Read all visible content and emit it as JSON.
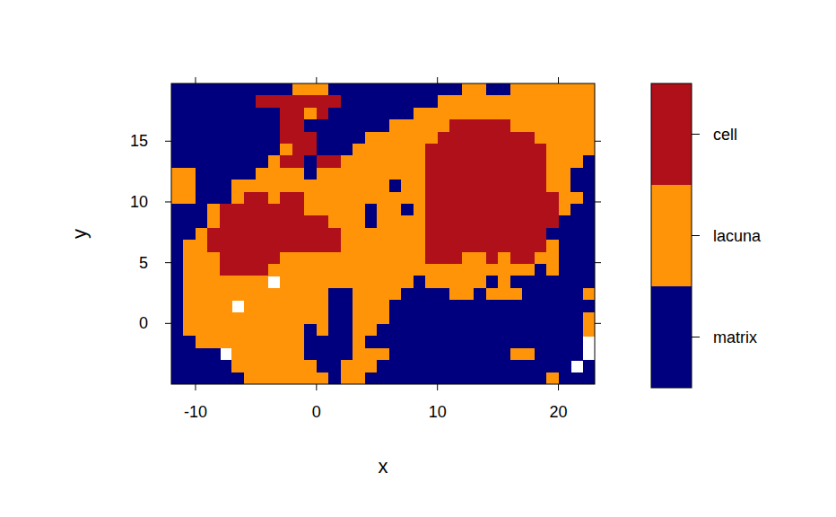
{
  "chart_data": {
    "type": "heatmap",
    "x_label": "x",
    "y_label": "y",
    "xlim": [
      -12,
      23
    ],
    "ylim": [
      -5,
      19.75
    ],
    "xticks": [
      -10,
      0,
      10,
      20
    ],
    "yticks": [
      0,
      5,
      10,
      15
    ],
    "levels": [
      "matrix",
      "lacuna",
      "cell"
    ],
    "colors": [
      "#00007f",
      "#ff9408",
      "#b0101a"
    ],
    "cells": [
      [
        0,
        0,
        0,
        0,
        0,
        0,
        0,
        0,
        0,
        0,
        1,
        1,
        1,
        0,
        0,
        0,
        0,
        0,
        0,
        0,
        0,
        0,
        0,
        0,
        1,
        1,
        0,
        0,
        1,
        1,
        1,
        1,
        1,
        1,
        1
      ],
      [
        0,
        0,
        0,
        0,
        0,
        0,
        0,
        2,
        2,
        2,
        2,
        2,
        2,
        2,
        0,
        0,
        0,
        0,
        0,
        0,
        0,
        0,
        1,
        1,
        1,
        1,
        1,
        1,
        1,
        1,
        1,
        1,
        1,
        1,
        1
      ],
      [
        0,
        0,
        0,
        0,
        0,
        0,
        0,
        0,
        0,
        2,
        2,
        1,
        2,
        0,
        0,
        0,
        0,
        0,
        0,
        0,
        1,
        1,
        1,
        1,
        1,
        1,
        1,
        1,
        1,
        1,
        1,
        1,
        1,
        1,
        1
      ],
      [
        0,
        0,
        0,
        0,
        0,
        0,
        0,
        0,
        0,
        2,
        2,
        0,
        0,
        0,
        0,
        0,
        0,
        0,
        1,
        1,
        1,
        1,
        1,
        2,
        2,
        2,
        2,
        2,
        1,
        1,
        1,
        1,
        1,
        1,
        1
      ],
      [
        0,
        0,
        0,
        0,
        0,
        0,
        0,
        0,
        0,
        2,
        2,
        2,
        0,
        0,
        0,
        0,
        1,
        1,
        1,
        1,
        1,
        1,
        2,
        2,
        2,
        2,
        2,
        2,
        2,
        2,
        1,
        1,
        1,
        1,
        1
      ],
      [
        0,
        0,
        0,
        0,
        0,
        0,
        0,
        0,
        0,
        1,
        2,
        2,
        0,
        0,
        0,
        1,
        1,
        1,
        1,
        1,
        1,
        2,
        2,
        2,
        2,
        2,
        2,
        2,
        2,
        2,
        2,
        1,
        1,
        1,
        1
      ],
      [
        0,
        0,
        0,
        0,
        0,
        0,
        0,
        0,
        1,
        2,
        2,
        0,
        2,
        2,
        1,
        1,
        1,
        1,
        1,
        1,
        1,
        2,
        2,
        2,
        2,
        2,
        2,
        2,
        2,
        2,
        2,
        1,
        1,
        1,
        0
      ],
      [
        1,
        1,
        0,
        0,
        0,
        0,
        0,
        1,
        1,
        1,
        1,
        0,
        1,
        1,
        1,
        1,
        1,
        1,
        1,
        1,
        1,
        2,
        2,
        2,
        2,
        2,
        2,
        2,
        2,
        2,
        2,
        1,
        1,
        0,
        0
      ],
      [
        1,
        1,
        0,
        0,
        0,
        1,
        1,
        1,
        1,
        1,
        1,
        1,
        1,
        1,
        1,
        1,
        1,
        1,
        0,
        1,
        1,
        2,
        2,
        2,
        2,
        2,
        2,
        2,
        2,
        2,
        2,
        1,
        1,
        0,
        0
      ],
      [
        1,
        1,
        0,
        0,
        0,
        1,
        2,
        2,
        1,
        2,
        2,
        1,
        1,
        1,
        1,
        1,
        1,
        1,
        1,
        1,
        1,
        2,
        2,
        2,
        2,
        2,
        2,
        2,
        2,
        2,
        2,
        2,
        1,
        1,
        0
      ],
      [
        0,
        0,
        0,
        1,
        2,
        2,
        2,
        2,
        2,
        2,
        2,
        1,
        1,
        1,
        1,
        1,
        0,
        1,
        1,
        0,
        1,
        2,
        2,
        2,
        2,
        2,
        2,
        2,
        2,
        2,
        2,
        2,
        1,
        0,
        0
      ],
      [
        0,
        0,
        0,
        1,
        2,
        2,
        2,
        2,
        2,
        2,
        2,
        2,
        2,
        1,
        1,
        1,
        0,
        1,
        1,
        1,
        1,
        2,
        2,
        2,
        2,
        2,
        2,
        2,
        2,
        2,
        2,
        2,
        0,
        0,
        0
      ],
      [
        0,
        0,
        1,
        2,
        2,
        2,
        2,
        2,
        2,
        2,
        2,
        2,
        2,
        2,
        1,
        1,
        1,
        1,
        1,
        1,
        1,
        2,
        2,
        2,
        2,
        2,
        2,
        2,
        2,
        2,
        2,
        0,
        0,
        0,
        0
      ],
      [
        0,
        1,
        1,
        2,
        2,
        2,
        2,
        2,
        2,
        2,
        2,
        2,
        2,
        2,
        1,
        1,
        1,
        1,
        1,
        1,
        1,
        2,
        2,
        2,
        2,
        2,
        2,
        2,
        2,
        2,
        2,
        1,
        0,
        0,
        0
      ],
      [
        0,
        1,
        1,
        1,
        2,
        2,
        2,
        2,
        2,
        1,
        1,
        1,
        1,
        1,
        1,
        1,
        1,
        1,
        1,
        1,
        1,
        2,
        2,
        2,
        1,
        1,
        2,
        1,
        2,
        2,
        1,
        1,
        0,
        0,
        0
      ],
      [
        0,
        1,
        1,
        1,
        2,
        2,
        2,
        2,
        1,
        1,
        1,
        1,
        1,
        1,
        1,
        1,
        1,
        1,
        1,
        1,
        1,
        1,
        1,
        1,
        1,
        1,
        1,
        1,
        1,
        1,
        0,
        1,
        0,
        0,
        0
      ],
      [
        0,
        1,
        1,
        1,
        1,
        1,
        1,
        1,
        null,
        1,
        1,
        1,
        1,
        1,
        1,
        1,
        1,
        1,
        1,
        1,
        0,
        1,
        1,
        1,
        1,
        1,
        0,
        1,
        0,
        0,
        0,
        0,
        0,
        0,
        0
      ],
      [
        0,
        1,
        1,
        1,
        1,
        1,
        1,
        1,
        1,
        1,
        1,
        1,
        1,
        0,
        0,
        1,
        1,
        1,
        1,
        0,
        0,
        0,
        0,
        1,
        1,
        0,
        1,
        1,
        1,
        0,
        0,
        0,
        0,
        0,
        1
      ],
      [
        0,
        1,
        1,
        1,
        1,
        null,
        1,
        1,
        1,
        1,
        1,
        1,
        1,
        0,
        0,
        1,
        1,
        1,
        0,
        0,
        0,
        0,
        0,
        0,
        0,
        0,
        0,
        0,
        0,
        0,
        0,
        0,
        0,
        0,
        0
      ],
      [
        0,
        1,
        1,
        1,
        1,
        1,
        1,
        1,
        1,
        1,
        1,
        1,
        1,
        0,
        0,
        1,
        1,
        1,
        0,
        0,
        0,
        0,
        0,
        0,
        0,
        0,
        0,
        0,
        0,
        0,
        0,
        0,
        0,
        0,
        1
      ],
      [
        0,
        1,
        1,
        1,
        1,
        1,
        1,
        1,
        1,
        1,
        1,
        0,
        1,
        0,
        0,
        1,
        1,
        0,
        0,
        0,
        0,
        0,
        0,
        0,
        0,
        0,
        0,
        0,
        0,
        0,
        0,
        0,
        0,
        0,
        1
      ],
      [
        0,
        0,
        1,
        1,
        1,
        1,
        1,
        1,
        1,
        1,
        1,
        0,
        0,
        0,
        0,
        1,
        0,
        0,
        0,
        0,
        0,
        0,
        0,
        0,
        0,
        0,
        0,
        0,
        0,
        0,
        0,
        0,
        0,
        0,
        null
      ],
      [
        0,
        0,
        0,
        0,
        null,
        1,
        1,
        1,
        1,
        1,
        1,
        0,
        0,
        0,
        0,
        1,
        1,
        1,
        0,
        0,
        0,
        0,
        0,
        0,
        0,
        0,
        0,
        0,
        1,
        1,
        0,
        0,
        0,
        0,
        null
      ],
      [
        0,
        0,
        0,
        0,
        0,
        1,
        1,
        1,
        1,
        1,
        1,
        1,
        0,
        0,
        1,
        1,
        1,
        0,
        0,
        0,
        0,
        0,
        0,
        0,
        0,
        0,
        0,
        0,
        0,
        0,
        0,
        0,
        0,
        null,
        0
      ],
      [
        0,
        0,
        0,
        0,
        0,
        0,
        1,
        1,
        1,
        1,
        1,
        1,
        1,
        0,
        1,
        1,
        0,
        0,
        0,
        0,
        0,
        0,
        0,
        0,
        0,
        0,
        0,
        0,
        0,
        0,
        0,
        1,
        0,
        0,
        0
      ]
    ]
  }
}
